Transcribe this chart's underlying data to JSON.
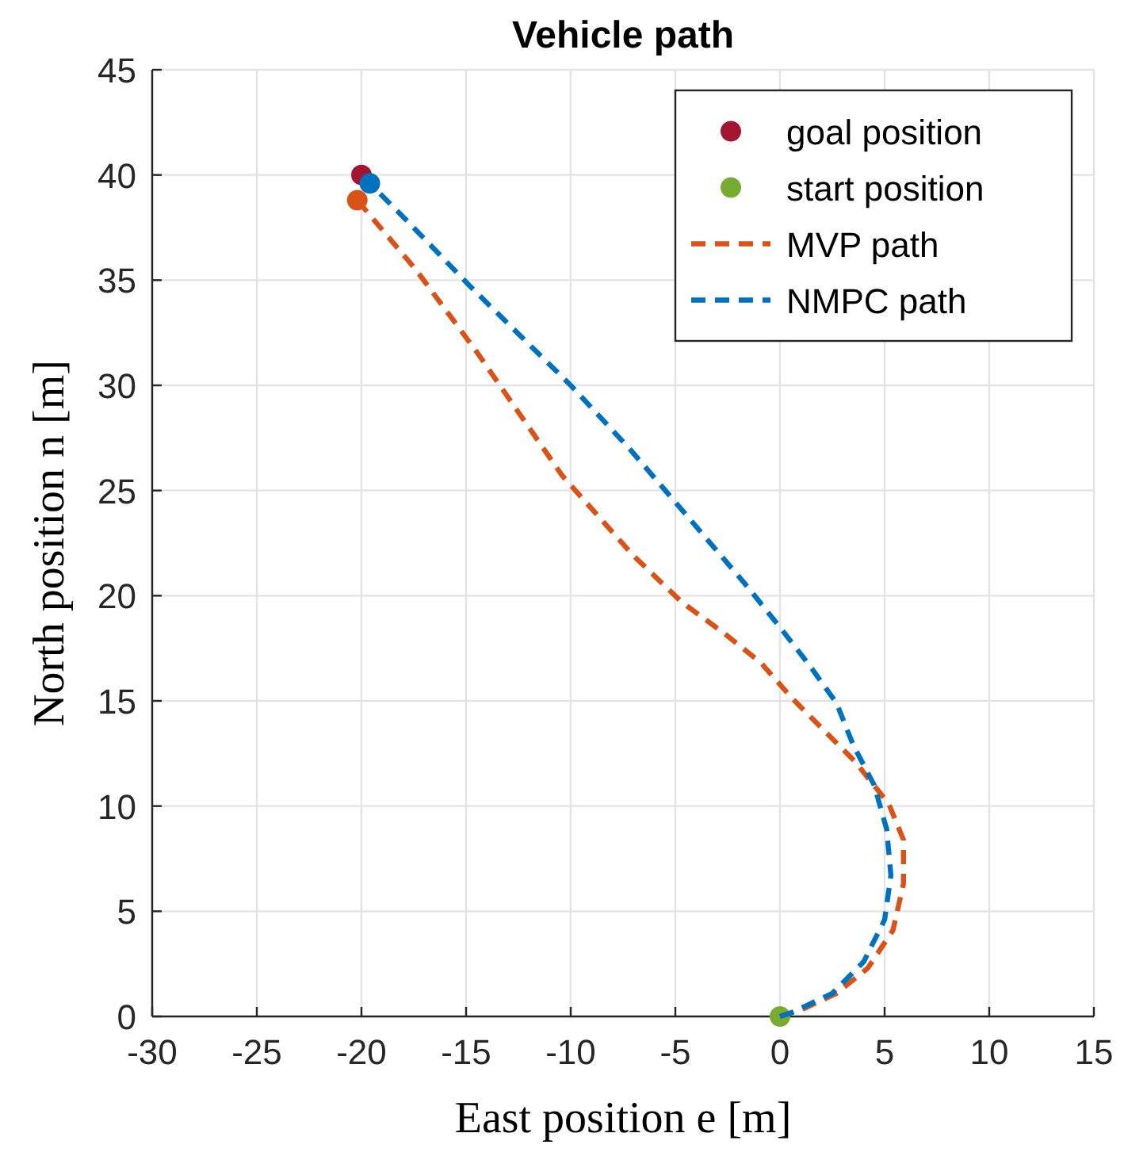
{
  "chart_data": {
    "type": "line",
    "title": "Vehicle path",
    "xlabel": "East position e [m]",
    "ylabel": "North position n [m]",
    "xlim": [
      -30,
      15
    ],
    "xticks": [
      -30,
      -25,
      -20,
      -15,
      -10,
      -5,
      0,
      5,
      10,
      15
    ],
    "ylim": [
      0,
      45
    ],
    "yticks": [
      0,
      5,
      10,
      15,
      20,
      25,
      30,
      35,
      40,
      45
    ],
    "grid": true,
    "legend": "top right",
    "series": [
      {
        "name": "goal position",
        "type": "scatter",
        "marker": "circle",
        "color": "#a2142f",
        "x": [
          -20
        ],
        "values": [
          40
        ]
      },
      {
        "name": "start position",
        "type": "scatter",
        "marker": "circle",
        "color": "#77ac30",
        "x": [
          0
        ],
        "values": [
          0
        ]
      },
      {
        "name": "MVP path",
        "type": "line",
        "line_style": "dashed",
        "color": "#d95319",
        "x": [
          0,
          1.2,
          2.7,
          4.2,
          5.4,
          5.9,
          5.9,
          5.2,
          3.6,
          2.1,
          0.6,
          -0.9,
          -2.65,
          -4.7,
          -7,
          -10.4,
          -14.5,
          -17.4,
          -20.2
        ],
        "values": [
          0,
          0.4,
          1.1,
          2.3,
          4.1,
          6.3,
          8.4,
          10.1,
          12.1,
          13.6,
          15.1,
          16.8,
          18.2,
          19.7,
          21.9,
          25.7,
          31.6,
          35.5,
          38.8
        ]
      },
      {
        "name": "NMPC path",
        "type": "line",
        "line_style": "dashed",
        "color": "#0072bd",
        "x": [
          0,
          0.6,
          2.5,
          4.0,
          5.0,
          5.3,
          5.1,
          4.5,
          3.5,
          2.7,
          1.4,
          0,
          -1.7,
          -3.5,
          -7.2,
          -10,
          -14.8,
          -17.8,
          -19.6
        ],
        "values": [
          0,
          0.2,
          1.1,
          2.6,
          4.6,
          6.7,
          8.9,
          11,
          12.9,
          14.9,
          16.7,
          18.5,
          20.6,
          22.7,
          27,
          30,
          34.7,
          37.8,
          39.6
        ]
      },
      {
        "type": "scatter",
        "marker": "circle",
        "color": "#d95319",
        "x": [
          -20.2
        ],
        "values": [
          38.8
        ]
      },
      {
        "type": "scatter",
        "marker": "circle",
        "color": "#0072bd",
        "x": [
          -19.6
        ],
        "values": [
          39.6
        ]
      }
    ]
  }
}
